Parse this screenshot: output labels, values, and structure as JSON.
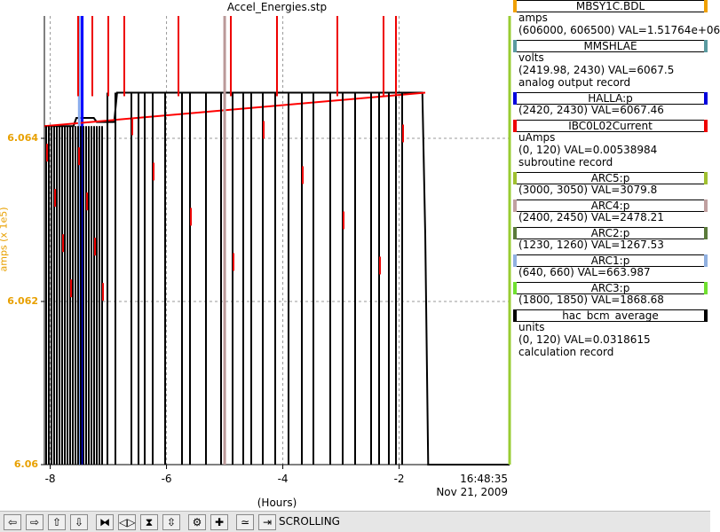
{
  "chart_data": {
    "type": "line",
    "title": "Accel_Energies.stp",
    "ylabel": "amps (x 1e5)",
    "xlabel": "(Hours)",
    "yticks": [
      "6.06",
      "6.062",
      "6.064"
    ],
    "xticks": [
      "-8",
      "-6",
      "-4",
      "-2"
    ],
    "ylim": [
      6.06,
      6.0655
    ],
    "xlim": [
      -8.1,
      -0.1
    ],
    "grid": true,
    "time_label": "16:48:35",
    "date_label": "Nov 21, 2009",
    "series": [
      {
        "name": "MBSY1C.BDL",
        "color": "#000000",
        "x": [
          -8.1,
          -7.6,
          -7.55,
          -7.25,
          -7.2,
          -6.9,
          -6.85,
          -1.6,
          -1.55,
          -1.5,
          -0.1
        ],
        "values": [
          6.06415,
          6.06415,
          6.06425,
          6.06425,
          6.0642,
          6.0642,
          6.06456,
          6.06456,
          6.0628,
          6.06,
          6.06
        ]
      },
      {
        "name": "HALLA:p",
        "color": "#0000ff",
        "x": [
          -7.45
        ],
        "values": [
          6.0655
        ]
      },
      {
        "name": "IBC0L02Current",
        "color": "#ff0000",
        "x": [
          -8.1,
          -1.55
        ],
        "values": [
          6.06415,
          6.06456
        ]
      },
      {
        "name": "ARC5:p",
        "color": "#99cc33",
        "x": [
          -0.1
        ],
        "values": [
          6.0655
        ]
      },
      {
        "name": "ARC4:p",
        "color": "#bb9999",
        "x": [
          -5.0
        ],
        "values": [
          6.0655
        ]
      },
      {
        "name": "ARC1:p",
        "color": "#88aaee",
        "x": [
          -7.5
        ],
        "values": [
          6.0655
        ]
      },
      {
        "name": "ARC3:p",
        "color": "#66dd22",
        "x": [
          -0.0
        ],
        "values": [
          6.0655
        ]
      }
    ]
  },
  "legend": {
    "entries": [
      {
        "name": "MBSY1C.BDL",
        "color": "#f0a000",
        "lines": [
          "amps",
          "(606000, 606500)  VAL=1.51764e+06"
        ]
      },
      {
        "name": "MMSHLAE",
        "color": "#5a9aa0",
        "lines": [
          "volts",
          "(2419.98, 2430)  VAL=6067.5",
          "analog output record"
        ]
      },
      {
        "name": "HALLA:p",
        "color": "#0000dd",
        "lines": [
          "(2420, 2430)  VAL=6067.46"
        ]
      },
      {
        "name": "IBC0L02Current",
        "color": "#ee0000",
        "lines": [
          "uAmps",
          "(0, 120)  VAL=0.00538984",
          "subroutine record"
        ]
      },
      {
        "name": "ARC5:p",
        "color": "#a0c030",
        "lines": [
          "(3000, 3050)  VAL=3079.8"
        ]
      },
      {
        "name": "ARC4:p",
        "color": "#c0a0a0",
        "lines": [
          "(2400, 2450)  VAL=2478.21"
        ]
      },
      {
        "name": "ARC2:p",
        "color": "#5a7a3a",
        "lines": [
          "(1230, 1260)  VAL=1267.53"
        ]
      },
      {
        "name": "ARC1:p",
        "color": "#90b0e0",
        "lines": [
          "(640, 660)  VAL=663.987"
        ]
      },
      {
        "name": "ARC3:p",
        "color": "#70e030",
        "lines": [
          "(1800, 1850)  VAL=1868.68"
        ]
      },
      {
        "name": "hac_bcm_average",
        "color": "#000000",
        "lines": [
          "units",
          "(0, 120)  VAL=0.0318615",
          "calculation record"
        ]
      }
    ]
  },
  "toolbar": {
    "buttons": [
      {
        "icon": "arrow-left-icon",
        "glyph": "⇦"
      },
      {
        "icon": "arrow-right-icon",
        "glyph": "⇨"
      },
      {
        "icon": "arrow-up-icon",
        "glyph": "⇧"
      },
      {
        "icon": "arrow-down-icon",
        "glyph": "⇩"
      },
      {
        "icon": "zoom-in-horizontal-icon",
        "glyph": "⧓"
      },
      {
        "icon": "zoom-out-horizontal-icon",
        "glyph": "◁▷"
      },
      {
        "icon": "zoom-in-vertical-icon",
        "glyph": "⧗"
      },
      {
        "icon": "zoom-out-vertical-icon",
        "glyph": "⇳"
      },
      {
        "icon": "config-icon",
        "glyph": "⚙"
      },
      {
        "icon": "add-icon",
        "glyph": "✚"
      },
      {
        "icon": "auto-scale-icon",
        "glyph": "≃"
      },
      {
        "icon": "jump-to-end-icon",
        "glyph": "⇥"
      }
    ],
    "status": "SCROLLING"
  }
}
